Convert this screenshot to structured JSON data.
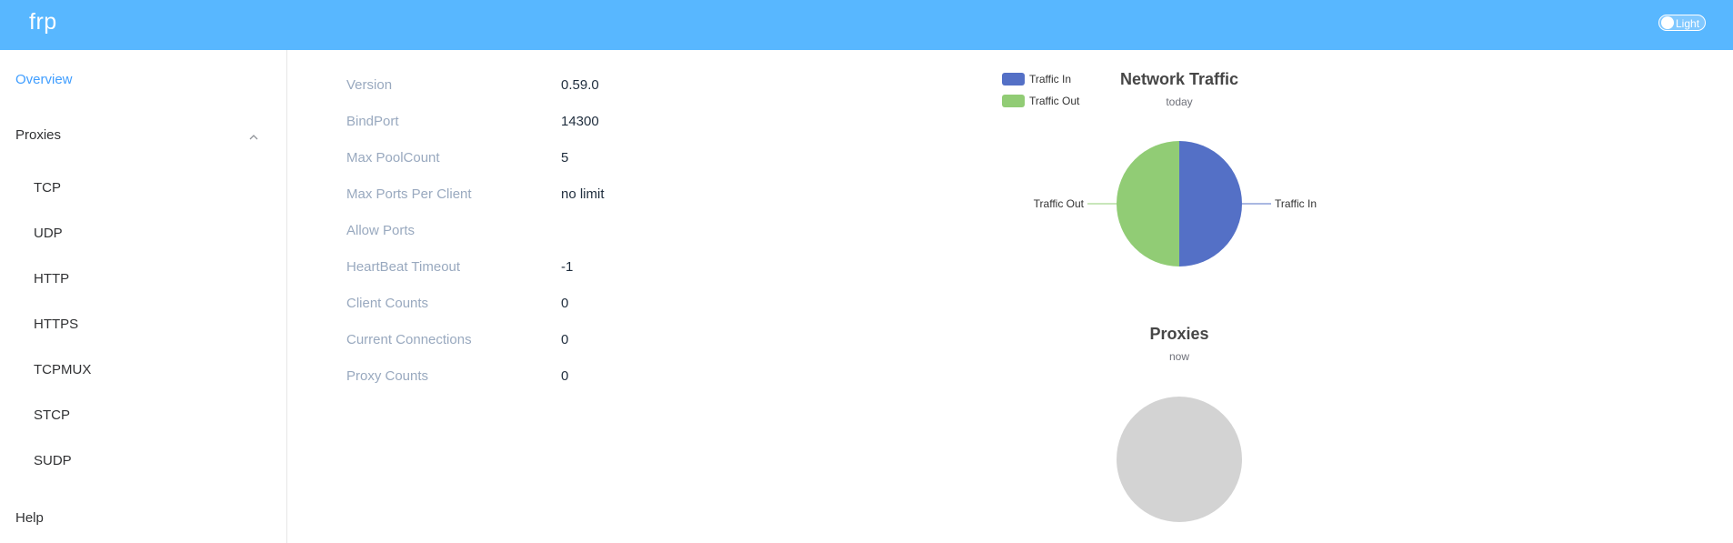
{
  "header": {
    "logo": "frp",
    "theme_label": "Light"
  },
  "sidebar": {
    "overview": "Overview",
    "proxies": "Proxies",
    "proxy_items": [
      "TCP",
      "UDP",
      "HTTP",
      "HTTPS",
      "TCPMUX",
      "STCP",
      "SUDP"
    ],
    "help": "Help"
  },
  "server_info": [
    {
      "label": "Version",
      "value": "0.59.0"
    },
    {
      "label": "BindPort",
      "value": "14300"
    },
    {
      "label": "Max PoolCount",
      "value": "5"
    },
    {
      "label": "Max Ports Per Client",
      "value": "no limit"
    },
    {
      "label": "Allow Ports",
      "value": ""
    },
    {
      "label": "HeartBeat Timeout",
      "value": "-1"
    },
    {
      "label": "Client Counts",
      "value": "0"
    },
    {
      "label": "Current Connections",
      "value": "0"
    },
    {
      "label": "Proxy Counts",
      "value": "0"
    }
  ],
  "colors": {
    "header": "#58b7ff",
    "active": "#409eff",
    "traffic_in": "#5470c6",
    "traffic_out": "#91cc75",
    "empty": "#d3d3d3"
  },
  "chart_data": [
    {
      "type": "pie",
      "title": "Network Traffic",
      "subtitle": "today",
      "legend_position": "top-left",
      "categories": [
        "Traffic In",
        "Traffic Out"
      ],
      "values": [
        50,
        50
      ]
    },
    {
      "type": "pie",
      "title": "Proxies",
      "subtitle": "now",
      "categories": [],
      "values": []
    }
  ]
}
